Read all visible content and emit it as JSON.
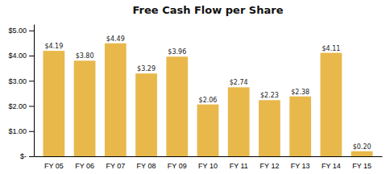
{
  "chart_data": {
    "type": "bar",
    "title": "Free Cash Flow per Share",
    "categories": [
      "FY 05",
      "FY 06",
      "FY 07",
      "FY 08",
      "FY 09",
      "FY 10",
      "FY 11",
      "FY 12",
      "FY 13",
      "FY 14",
      "FY 15"
    ],
    "values": [
      4.19,
      3.8,
      4.49,
      3.29,
      3.96,
      2.06,
      2.74,
      2.23,
      2.38,
      4.11,
      0.2
    ],
    "value_labels": [
      "$4.19",
      "$3.80",
      "$4.49",
      "$3.29",
      "$3.96",
      "$2.06",
      "$2.74",
      "$2.23",
      "$2.38",
      "$4.11",
      "$0.20"
    ],
    "data_labels": true,
    "color": "#E8B84B",
    "ylim": [
      0,
      5.25
    ],
    "yticks": [
      {
        "value": 0,
        "label": "$-"
      },
      {
        "value": 1.0,
        "label": "$1.00"
      },
      {
        "value": 2.0,
        "label": "$2.00"
      },
      {
        "value": 3.0,
        "label": "$3.00"
      },
      {
        "value": 4.0,
        "label": "$4.00"
      },
      {
        "value": 5.0,
        "label": "$5.00"
      }
    ],
    "grid": false
  }
}
